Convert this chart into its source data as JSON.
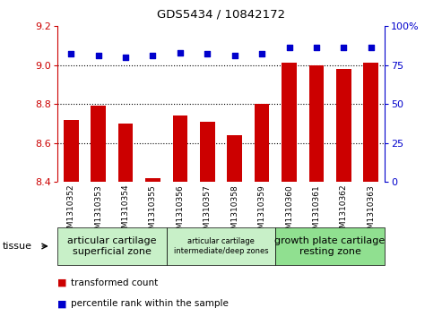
{
  "title": "GDS5434 / 10842172",
  "samples": [
    "GSM1310352",
    "GSM1310353",
    "GSM1310354",
    "GSM1310355",
    "GSM1310356",
    "GSM1310357",
    "GSM1310358",
    "GSM1310359",
    "GSM1310360",
    "GSM1310361",
    "GSM1310362",
    "GSM1310363"
  ],
  "bar_values": [
    8.72,
    8.79,
    8.7,
    8.42,
    8.74,
    8.71,
    8.64,
    8.8,
    9.01,
    9.0,
    8.98,
    9.01
  ],
  "percentile_values": [
    82,
    81,
    80,
    81,
    83,
    82,
    81,
    82,
    86,
    86,
    86,
    86
  ],
  "ylim_left": [
    8.4,
    9.2
  ],
  "ylim_right": [
    0,
    100
  ],
  "yticks_left": [
    8.4,
    8.6,
    8.8,
    9.0,
    9.2
  ],
  "yticks_right": [
    0,
    25,
    50,
    75,
    100
  ],
  "bar_color": "#cc0000",
  "dot_color": "#0000cc",
  "tissue_groups": [
    {
      "label": "articular cartilage\nsuperficial zone",
      "start": 0,
      "end": 4,
      "color": "#c8f0c8",
      "font_size": 8
    },
    {
      "label": "articular cartilage\nintermediate/deep zones",
      "start": 4,
      "end": 8,
      "color": "#c8f0c8",
      "font_size": 6
    },
    {
      "label": "growth plate cartilage\nresting zone",
      "start": 8,
      "end": 12,
      "color": "#90e090",
      "font_size": 8
    }
  ],
  "legend_items": [
    {
      "label": "transformed count",
      "color": "#cc0000"
    },
    {
      "label": "percentile rank within the sample",
      "color": "#0000cc"
    }
  ],
  "tissue_label": "tissue",
  "xtick_bg_color": "#d8d8d8",
  "plot_bg_color": "#ffffff"
}
